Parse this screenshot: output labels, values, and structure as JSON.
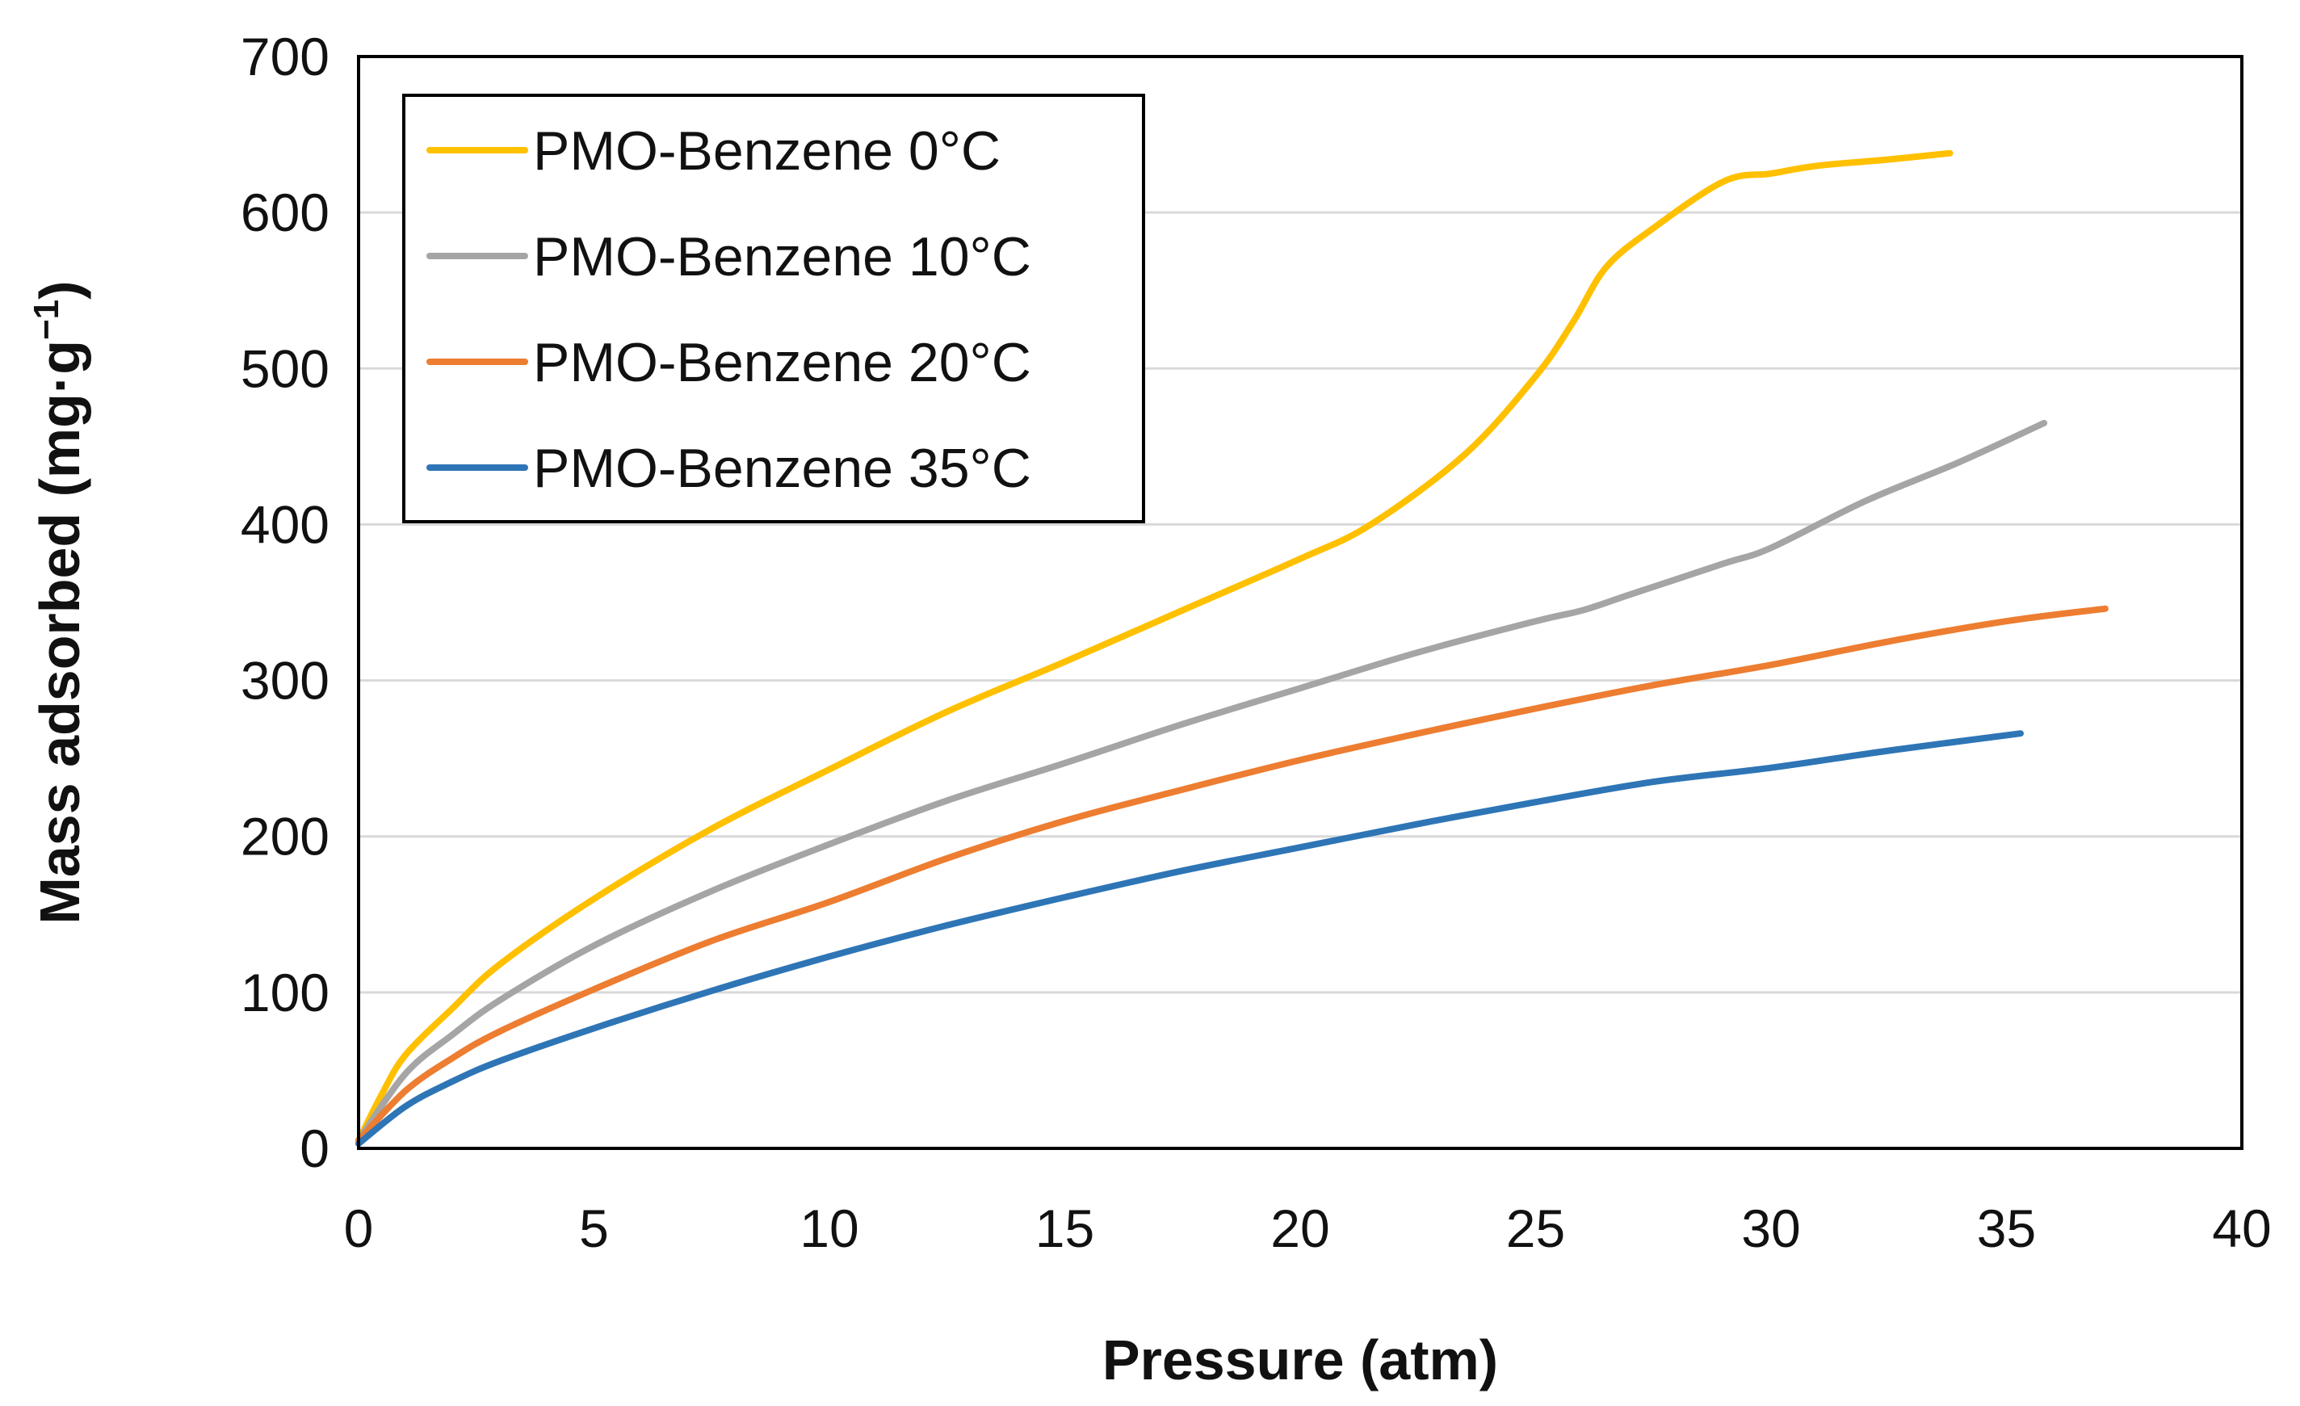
{
  "chart_data": {
    "type": "line",
    "xlabel": "Pressure (atm)",
    "ylabel": "Mass adsorbed (mg·g",
    "ylabel_sup": "−1",
    "ylabel_close": ")",
    "xlim": [
      0,
      40
    ],
    "ylim": [
      0,
      700
    ],
    "x_ticks": [
      0,
      5,
      10,
      15,
      20,
      25,
      30,
      35,
      40
    ],
    "y_ticks": [
      0,
      100,
      200,
      300,
      400,
      500,
      600,
      700
    ],
    "x_tick_labels": [
      "0",
      "5",
      "10",
      "15",
      "20",
      "25",
      "30",
      "35",
      "40"
    ],
    "y_tick_labels": [
      "0",
      "100",
      "200",
      "300",
      "400",
      "500",
      "600",
      "700"
    ],
    "grid": "horizontal",
    "legend_position": "top-left",
    "series": [
      {
        "name": "PMO-Benzene 0°C",
        "color": "#FFC000",
        "points": [
          [
            0,
            5
          ],
          [
            0.5,
            35
          ],
          [
            1,
            60
          ],
          [
            2,
            90
          ],
          [
            3,
            118
          ],
          [
            5,
            160
          ],
          [
            7.5,
            205
          ],
          [
            10,
            243
          ],
          [
            12.5,
            280
          ],
          [
            15,
            312
          ],
          [
            17.5,
            345
          ],
          [
            20,
            378
          ],
          [
            21.5,
            400
          ],
          [
            23.5,
            445
          ],
          [
            25,
            495
          ],
          [
            25.8,
            530
          ],
          [
            26.5,
            565
          ],
          [
            27.5,
            590
          ],
          [
            29,
            620
          ],
          [
            30,
            625
          ],
          [
            31,
            630
          ],
          [
            32.5,
            634
          ],
          [
            33.8,
            638
          ]
        ]
      },
      {
        "name": "PMO-Benzene 10°C",
        "color": "#A5A5A5",
        "points": [
          [
            0,
            5
          ],
          [
            1,
            48
          ],
          [
            2,
            73
          ],
          [
            3,
            95
          ],
          [
            5,
            130
          ],
          [
            7.5,
            165
          ],
          [
            10,
            195
          ],
          [
            12.5,
            223
          ],
          [
            15,
            247
          ],
          [
            17.5,
            272
          ],
          [
            20,
            295
          ],
          [
            22.5,
            318
          ],
          [
            25,
            338
          ],
          [
            26,
            345
          ],
          [
            27,
            355
          ],
          [
            29,
            375
          ],
          [
            30,
            385
          ],
          [
            32,
            415
          ],
          [
            34,
            440
          ],
          [
            35.8,
            465
          ]
        ]
      },
      {
        "name": "PMO-Benzene 20°C",
        "color": "#ED7D31",
        "points": [
          [
            0,
            5
          ],
          [
            1,
            37
          ],
          [
            2,
            58
          ],
          [
            3,
            75
          ],
          [
            5,
            102
          ],
          [
            7.5,
            133
          ],
          [
            10,
            158
          ],
          [
            12.5,
            186
          ],
          [
            15,
            210
          ],
          [
            17.5,
            230
          ],
          [
            20,
            249
          ],
          [
            22.5,
            266
          ],
          [
            25,
            282
          ],
          [
            27.5,
            297
          ],
          [
            30,
            310
          ],
          [
            32.5,
            325
          ],
          [
            35,
            338
          ],
          [
            37.1,
            346
          ]
        ]
      },
      {
        "name": "PMO-Benzene 35°C",
        "color": "#2E75B6",
        "points": [
          [
            0,
            3
          ],
          [
            1,
            27
          ],
          [
            2,
            43
          ],
          [
            3,
            56
          ],
          [
            5,
            77
          ],
          [
            7.5,
            101
          ],
          [
            10,
            123
          ],
          [
            12.5,
            143
          ],
          [
            15,
            161
          ],
          [
            17.5,
            178
          ],
          [
            20,
            193
          ],
          [
            22.5,
            208
          ],
          [
            25,
            222
          ],
          [
            27.5,
            235
          ],
          [
            30,
            244
          ],
          [
            32.5,
            255
          ],
          [
            35.3,
            266
          ]
        ]
      }
    ]
  }
}
